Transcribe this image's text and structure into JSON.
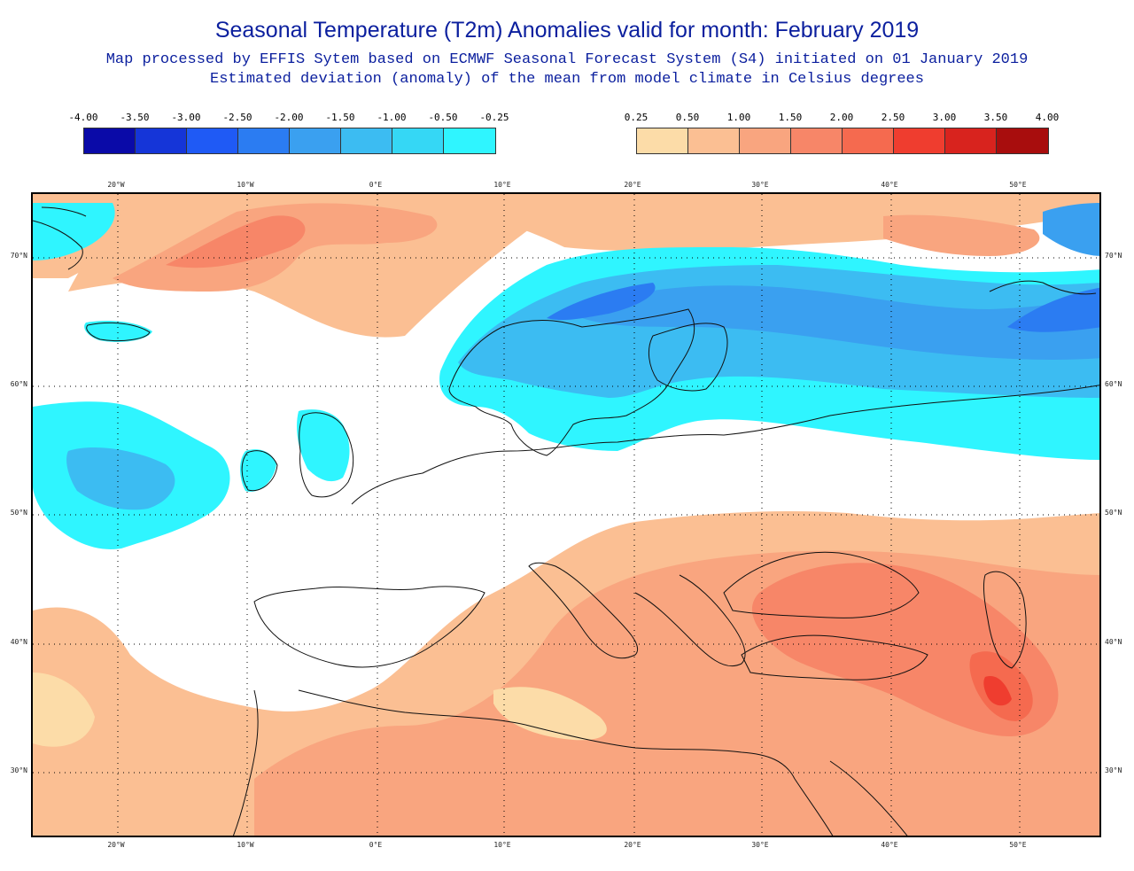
{
  "header": {
    "title": "Seasonal Temperature (T2m) Anomalies valid for month: February 2019",
    "subtitle_line1": "Map processed by EFFIS Sytem based on ECMWF Seasonal Forecast System (S4) initiated on 01 January 2019",
    "subtitle_line2": "Estimated deviation (anomaly) of the mean from model climate in Celsius degrees"
  },
  "legend": {
    "cold": {
      "labels": [
        "-4.00",
        "-3.50",
        "-3.00",
        "-2.50",
        "-2.00",
        "-1.50",
        "-1.00",
        "-0.50",
        "-0.25"
      ],
      "colors": [
        "#0a0aa8",
        "#1535d8",
        "#1f5af5",
        "#2b7cf2",
        "#3aa0f0",
        "#3cbcf2",
        "#35d7f5",
        "#2ff5ff"
      ]
    },
    "warm": {
      "labels": [
        "0.25",
        "0.50",
        "1.00",
        "1.50",
        "2.00",
        "2.50",
        "3.00",
        "3.50",
        "4.00"
      ],
      "colors": [
        "#fcdca8",
        "#fbbf93",
        "#f9a57f",
        "#f78668",
        "#f56a4f",
        "#ef3d2f",
        "#d8231e",
        "#a80d0d"
      ]
    }
  },
  "map": {
    "top_ticks": [
      "20°W",
      "10°W",
      "0°E",
      "10°E",
      "20°E",
      "30°E",
      "40°E",
      "50°E"
    ],
    "bottom_ticks": [
      "20°W",
      "10°W",
      "0°E",
      "10°E",
      "20°E",
      "30°E",
      "40°E",
      "50°E"
    ],
    "left_ticks": [
      "70°N",
      "60°N",
      "50°N",
      "40°N",
      "30°N"
    ],
    "right_ticks": [
      "70°N",
      "60°N",
      "50°N",
      "40°N",
      "30°N"
    ]
  }
}
